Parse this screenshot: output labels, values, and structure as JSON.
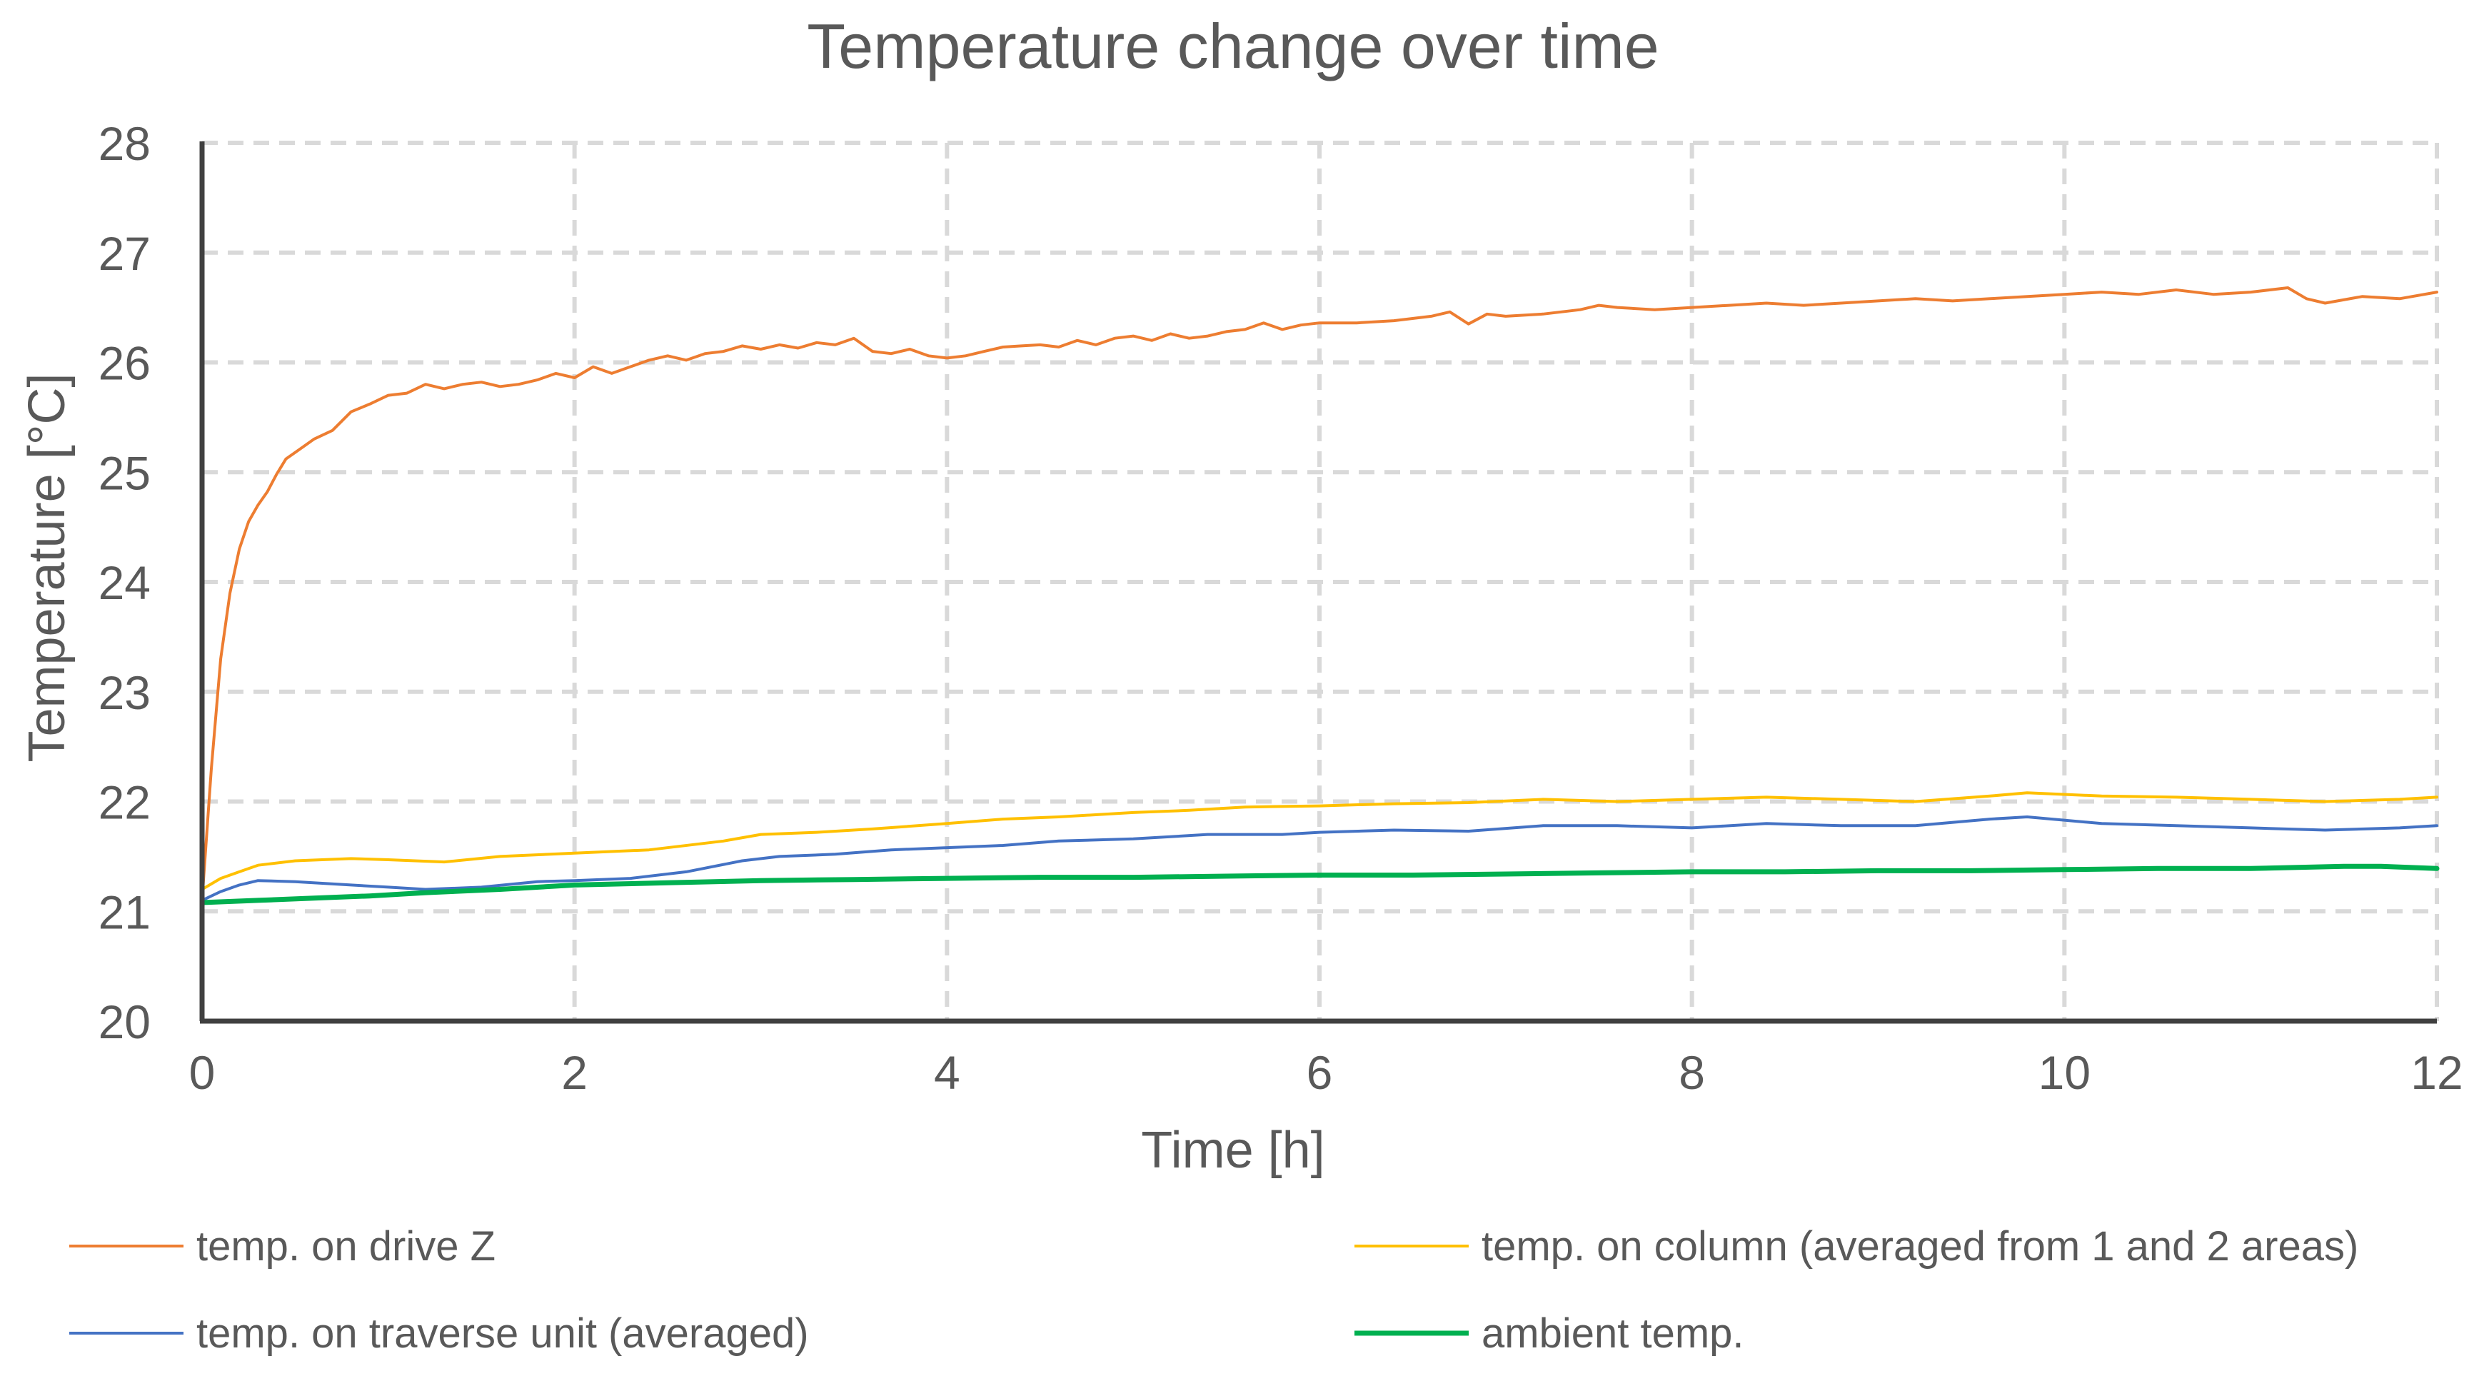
{
  "chart_data": {
    "type": "line",
    "title": "Temperature change over time",
    "xlabel": "Time [h]",
    "ylabel": "Temperature [°C]",
    "xlim": [
      0,
      12
    ],
    "ylim": [
      20,
      28
    ],
    "xticks": [
      0,
      2,
      4,
      6,
      8,
      10,
      12
    ],
    "yticks": [
      20,
      21,
      22,
      23,
      24,
      25,
      26,
      27,
      28
    ],
    "grid": true,
    "legend_position": "bottom",
    "series": [
      {
        "name": "temp. on drive Z",
        "color": "#ED7D31",
        "points": [
          [
            0,
            21.1
          ],
          [
            0.05,
            22.3
          ],
          [
            0.1,
            23.3
          ],
          [
            0.15,
            23.9
          ],
          [
            0.2,
            24.3
          ],
          [
            0.25,
            24.55
          ],
          [
            0.3,
            24.7
          ],
          [
            0.35,
            24.82
          ],
          [
            0.4,
            24.98
          ],
          [
            0.45,
            25.12
          ],
          [
            0.5,
            25.18
          ],
          [
            0.55,
            25.24
          ],
          [
            0.6,
            25.3
          ],
          [
            0.7,
            25.38
          ],
          [
            0.8,
            25.55
          ],
          [
            0.9,
            25.62
          ],
          [
            1.0,
            25.7
          ],
          [
            1.1,
            25.72
          ],
          [
            1.2,
            25.8
          ],
          [
            1.3,
            25.76
          ],
          [
            1.4,
            25.8
          ],
          [
            1.5,
            25.82
          ],
          [
            1.6,
            25.78
          ],
          [
            1.7,
            25.8
          ],
          [
            1.8,
            25.84
          ],
          [
            1.9,
            25.9
          ],
          [
            2.0,
            25.86
          ],
          [
            2.1,
            25.96
          ],
          [
            2.2,
            25.9
          ],
          [
            2.3,
            25.96
          ],
          [
            2.4,
            26.02
          ],
          [
            2.5,
            26.06
          ],
          [
            2.6,
            26.02
          ],
          [
            2.7,
            26.08
          ],
          [
            2.8,
            26.1
          ],
          [
            2.9,
            26.15
          ],
          [
            3.0,
            26.12
          ],
          [
            3.1,
            26.16
          ],
          [
            3.2,
            26.13
          ],
          [
            3.3,
            26.18
          ],
          [
            3.4,
            26.16
          ],
          [
            3.5,
            26.22
          ],
          [
            3.6,
            26.1
          ],
          [
            3.7,
            26.08
          ],
          [
            3.8,
            26.12
          ],
          [
            3.9,
            26.06
          ],
          [
            4.0,
            26.04
          ],
          [
            4.1,
            26.06
          ],
          [
            4.2,
            26.1
          ],
          [
            4.3,
            26.14
          ],
          [
            4.4,
            26.15
          ],
          [
            4.5,
            26.16
          ],
          [
            4.6,
            26.14
          ],
          [
            4.7,
            26.2
          ],
          [
            4.8,
            26.16
          ],
          [
            4.9,
            26.22
          ],
          [
            5.0,
            26.24
          ],
          [
            5.1,
            26.2
          ],
          [
            5.2,
            26.26
          ],
          [
            5.3,
            26.22
          ],
          [
            5.4,
            26.24
          ],
          [
            5.5,
            26.28
          ],
          [
            5.6,
            26.3
          ],
          [
            5.7,
            26.36
          ],
          [
            5.8,
            26.3
          ],
          [
            5.9,
            26.34
          ],
          [
            6.0,
            26.36
          ],
          [
            6.2,
            26.36
          ],
          [
            6.4,
            26.38
          ],
          [
            6.6,
            26.42
          ],
          [
            6.7,
            26.46
          ],
          [
            6.8,
            26.35
          ],
          [
            6.9,
            26.44
          ],
          [
            7.0,
            26.42
          ],
          [
            7.2,
            26.44
          ],
          [
            7.4,
            26.48
          ],
          [
            7.5,
            26.52
          ],
          [
            7.6,
            26.5
          ],
          [
            7.8,
            26.48
          ],
          [
            8.0,
            26.5
          ],
          [
            8.2,
            26.52
          ],
          [
            8.4,
            26.54
          ],
          [
            8.6,
            26.52
          ],
          [
            8.8,
            26.54
          ],
          [
            9.0,
            26.56
          ],
          [
            9.2,
            26.58
          ],
          [
            9.4,
            26.56
          ],
          [
            9.6,
            26.58
          ],
          [
            9.8,
            26.6
          ],
          [
            10.0,
            26.62
          ],
          [
            10.2,
            26.64
          ],
          [
            10.4,
            26.62
          ],
          [
            10.6,
            26.66
          ],
          [
            10.8,
            26.62
          ],
          [
            11.0,
            26.64
          ],
          [
            11.2,
            26.68
          ],
          [
            11.3,
            26.58
          ],
          [
            11.4,
            26.54
          ],
          [
            11.6,
            26.6
          ],
          [
            11.8,
            26.58
          ],
          [
            12.0,
            26.64
          ]
        ]
      },
      {
        "name": "temp. on column (averaged from 1 and 2 areas)",
        "color": "#FFC000",
        "points": [
          [
            0,
            21.2
          ],
          [
            0.1,
            21.3
          ],
          [
            0.2,
            21.36
          ],
          [
            0.3,
            21.42
          ],
          [
            0.5,
            21.46
          ],
          [
            0.8,
            21.48
          ],
          [
            1.0,
            21.47
          ],
          [
            1.3,
            21.45
          ],
          [
            1.6,
            21.5
          ],
          [
            2.0,
            21.53
          ],
          [
            2.4,
            21.56
          ],
          [
            2.8,
            21.64
          ],
          [
            3.0,
            21.7
          ],
          [
            3.3,
            21.72
          ],
          [
            3.6,
            21.75
          ],
          [
            4.0,
            21.8
          ],
          [
            4.3,
            21.84
          ],
          [
            4.6,
            21.86
          ],
          [
            5.0,
            21.9
          ],
          [
            5.3,
            21.92
          ],
          [
            5.6,
            21.95
          ],
          [
            6.0,
            21.96
          ],
          [
            6.4,
            21.98
          ],
          [
            6.8,
            21.99
          ],
          [
            7.2,
            22.02
          ],
          [
            7.6,
            22.0
          ],
          [
            8.0,
            22.02
          ],
          [
            8.4,
            22.04
          ],
          [
            8.8,
            22.02
          ],
          [
            9.2,
            22.0
          ],
          [
            9.6,
            22.05
          ],
          [
            9.8,
            22.08
          ],
          [
            10.2,
            22.05
          ],
          [
            10.6,
            22.04
          ],
          [
            11.0,
            22.02
          ],
          [
            11.4,
            22.0
          ],
          [
            11.8,
            22.02
          ],
          [
            12.0,
            22.04
          ]
        ]
      },
      {
        "name": "temp. on traverse unit (averaged)",
        "color": "#4472C4",
        "points": [
          [
            0,
            21.1
          ],
          [
            0.1,
            21.18
          ],
          [
            0.2,
            21.24
          ],
          [
            0.3,
            21.28
          ],
          [
            0.5,
            21.27
          ],
          [
            0.8,
            21.24
          ],
          [
            1.0,
            21.22
          ],
          [
            1.2,
            21.2
          ],
          [
            1.5,
            21.22
          ],
          [
            1.8,
            21.27
          ],
          [
            2.0,
            21.28
          ],
          [
            2.3,
            21.3
          ],
          [
            2.6,
            21.36
          ],
          [
            2.9,
            21.46
          ],
          [
            3.1,
            21.5
          ],
          [
            3.4,
            21.52
          ],
          [
            3.7,
            21.56
          ],
          [
            4.0,
            21.58
          ],
          [
            4.3,
            21.6
          ],
          [
            4.6,
            21.64
          ],
          [
            5.0,
            21.66
          ],
          [
            5.4,
            21.7
          ],
          [
            5.8,
            21.7
          ],
          [
            6.0,
            21.72
          ],
          [
            6.4,
            21.74
          ],
          [
            6.8,
            21.73
          ],
          [
            7.2,
            21.78
          ],
          [
            7.6,
            21.78
          ],
          [
            8.0,
            21.76
          ],
          [
            8.4,
            21.8
          ],
          [
            8.8,
            21.78
          ],
          [
            9.2,
            21.78
          ],
          [
            9.6,
            21.84
          ],
          [
            9.8,
            21.86
          ],
          [
            10.2,
            21.8
          ],
          [
            10.6,
            21.78
          ],
          [
            11.0,
            21.76
          ],
          [
            11.4,
            21.74
          ],
          [
            11.8,
            21.76
          ],
          [
            12.0,
            21.78
          ]
        ]
      },
      {
        "name": "ambient temp.",
        "color": "#00B050",
        "points": [
          [
            0,
            21.08
          ],
          [
            0.3,
            21.1
          ],
          [
            0.6,
            21.12
          ],
          [
            0.9,
            21.14
          ],
          [
            1.2,
            21.17
          ],
          [
            1.6,
            21.2
          ],
          [
            2.0,
            21.24
          ],
          [
            2.5,
            21.26
          ],
          [
            3.0,
            21.28
          ],
          [
            3.5,
            21.29
          ],
          [
            4.0,
            21.3
          ],
          [
            4.5,
            21.31
          ],
          [
            5.0,
            21.31
          ],
          [
            5.5,
            21.32
          ],
          [
            6.0,
            21.33
          ],
          [
            6.5,
            21.33
          ],
          [
            7.0,
            21.34
          ],
          [
            7.5,
            21.35
          ],
          [
            8.0,
            21.36
          ],
          [
            8.5,
            21.36
          ],
          [
            9.0,
            21.37
          ],
          [
            9.5,
            21.37
          ],
          [
            10.0,
            21.38
          ],
          [
            10.5,
            21.39
          ],
          [
            11.0,
            21.39
          ],
          [
            11.5,
            21.41
          ],
          [
            11.7,
            21.41
          ],
          [
            12.0,
            21.39
          ]
        ]
      }
    ]
  }
}
